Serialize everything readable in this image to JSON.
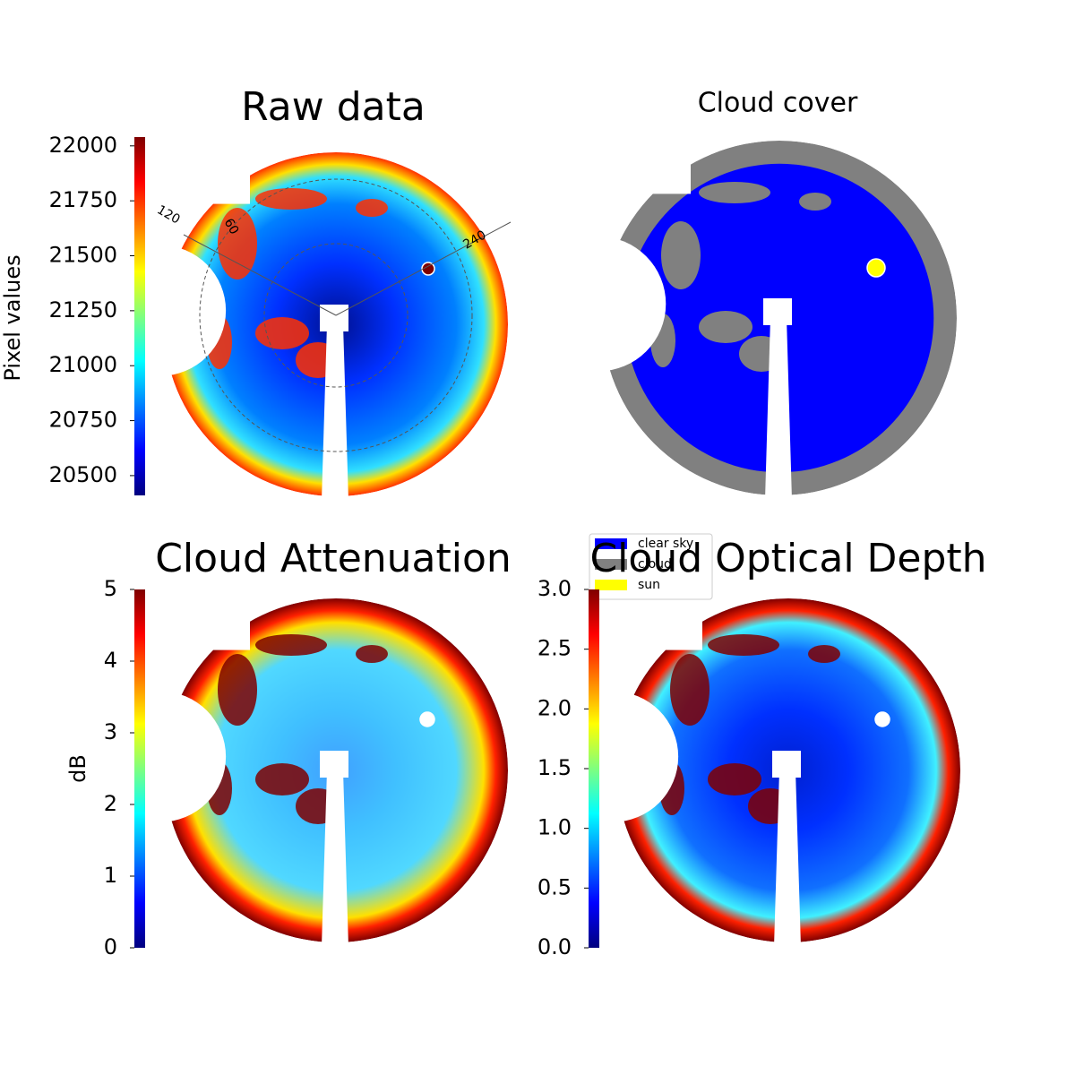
{
  "chart_data": [
    {
      "type": "image",
      "title": "Raw data",
      "colorbar_label": "Pixel values",
      "colormap": "jet",
      "ylim": [
        20410,
        22040
      ],
      "yticks": [
        20500,
        20750,
        21000,
        21250,
        21500,
        21750,
        22000
      ],
      "annotations": [
        "120",
        "60",
        "240"
      ]
    },
    {
      "type": "image",
      "title": "Cloud cover",
      "legend": "lower right",
      "series": [
        {
          "name": "clear sky",
          "color": "#0000ff"
        },
        {
          "name": "cloud",
          "color": "#808080"
        },
        {
          "name": "sun",
          "color": "#ffff00"
        }
      ]
    },
    {
      "type": "image",
      "title": "Cloud Attenuation",
      "colorbar_label": "dB",
      "colormap": "jet",
      "ylim": [
        0,
        5
      ],
      "yticks": [
        0,
        1,
        2,
        3,
        4,
        5
      ]
    },
    {
      "type": "image",
      "title": "Cloud Optical Depth",
      "colormap": "jet",
      "ylim": [
        0,
        3
      ],
      "yticks": [
        {
          "value": 0,
          "label": "0.0"
        },
        0.5,
        {
          "value": 1,
          "label": "1.0"
        },
        1.5,
        {
          "value": 2,
          "label": "2.0"
        },
        2.5,
        {
          "value": 3,
          "label": "3.0"
        }
      ]
    }
  ]
}
